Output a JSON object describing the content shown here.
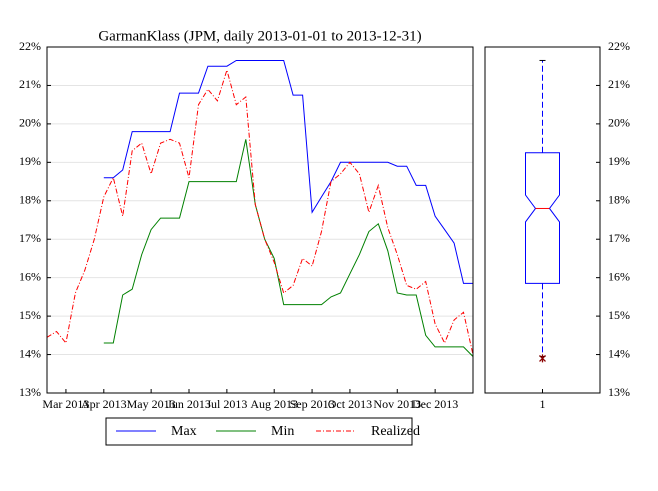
{
  "chart_data": [
    {
      "type": "line",
      "title": "GarmanKlass (JPM, daily 2013-01-01 to 2013-12-31)",
      "categories": [
        null,
        null,
        "Mar 2013",
        null,
        null,
        null,
        "Apr 2013",
        null,
        null,
        null,
        null,
        "May 2013",
        null,
        null,
        null,
        "Jun 2013",
        null,
        null,
        null,
        "Jul 2013",
        null,
        null,
        null,
        null,
        "Aug 2013",
        null,
        null,
        null,
        "Sep 2013",
        null,
        null,
        null,
        "Oct 2013",
        null,
        null,
        null,
        null,
        "Nov 2013",
        null,
        null,
        null,
        "Dec 2013",
        null,
        null,
        null,
        null
      ],
      "series": [
        {
          "name": "Max",
          "color": "#0000ff",
          "linestyle": "solid",
          "values": [
            null,
            null,
            null,
            null,
            null,
            null,
            18.6,
            18.6,
            18.8,
            19.8,
            19.8,
            19.8,
            19.8,
            19.8,
            20.8,
            20.8,
            20.8,
            21.5,
            21.5,
            21.5,
            21.65,
            21.65,
            21.65,
            21.65,
            21.65,
            21.65,
            20.75,
            20.75,
            17.7,
            18.1,
            18.5,
            19.0,
            19.0,
            19.0,
            19.0,
            19.0,
            19.0,
            18.9,
            18.9,
            18.4,
            18.4,
            17.6,
            17.25,
            16.9,
            15.85,
            15.85
          ]
        },
        {
          "name": "Min",
          "color": "#008000",
          "linestyle": "solid",
          "values": [
            null,
            null,
            null,
            null,
            null,
            null,
            14.3,
            14.3,
            15.55,
            15.7,
            16.6,
            17.25,
            17.55,
            17.55,
            17.55,
            18.5,
            18.5,
            18.5,
            18.5,
            18.5,
            18.5,
            19.6,
            17.9,
            17.0,
            16.5,
            15.3,
            15.3,
            15.3,
            15.3,
            15.3,
            15.5,
            15.6,
            16.1,
            16.6,
            17.2,
            17.4,
            16.7,
            15.6,
            15.55,
            15.55,
            14.5,
            14.2,
            14.2,
            14.2,
            14.2,
            13.95
          ]
        },
        {
          "name": "Realized",
          "color": "#ff0000",
          "linestyle": "dashdot",
          "values": [
            14.45,
            14.6,
            14.3,
            15.6,
            16.2,
            17.0,
            18.1,
            18.6,
            17.6,
            19.3,
            19.5,
            18.7,
            19.5,
            19.6,
            19.5,
            18.6,
            20.5,
            20.9,
            20.6,
            21.4,
            20.5,
            20.7,
            17.9,
            17.0,
            16.4,
            15.6,
            15.8,
            16.5,
            16.3,
            17.2,
            18.5,
            18.7,
            19.0,
            18.7,
            17.7,
            18.4,
            17.3,
            16.6,
            15.8,
            15.7,
            15.9,
            14.8,
            14.3,
            14.9,
            15.1,
            14.0
          ]
        }
      ],
      "ylim": [
        13,
        22
      ],
      "yticks": [
        {
          "value": 13,
          "label": "13%"
        },
        {
          "value": 14,
          "label": "14%"
        },
        {
          "value": 15,
          "label": "15%"
        },
        {
          "value": 16,
          "label": "16%"
        },
        {
          "value": 17,
          "label": "17%"
        },
        {
          "value": 18,
          "label": "18%"
        },
        {
          "value": 19,
          "label": "19%"
        },
        {
          "value": 20,
          "label": "20%"
        },
        {
          "value": 21,
          "label": "21%"
        },
        {
          "value": 22,
          "label": "22%"
        }
      ],
      "grid": true,
      "legend": "bottom"
    },
    {
      "type": "box",
      "color": "#0000ff",
      "categories": [
        "1"
      ],
      "boxes": [
        {
          "whislo": 13.95,
          "q1": 15.85,
          "notch_low": 17.45,
          "med": 17.8,
          "notch_high": 18.15,
          "q3": 19.25,
          "whishi": 21.65,
          "fliers": [
            13.9
          ]
        }
      ],
      "ylim": [
        13,
        22
      ],
      "yticks": [
        {
          "value": 13,
          "label": "13%"
        },
        {
          "value": 14,
          "label": "14%"
        },
        {
          "value": 15,
          "label": "15%"
        },
        {
          "value": 16,
          "label": "16%"
        },
        {
          "value": 17,
          "label": "17%"
        },
        {
          "value": 18,
          "label": "18%"
        },
        {
          "value": 19,
          "label": "19%"
        },
        {
          "value": 20,
          "label": "20%"
        },
        {
          "value": 21,
          "label": "21%"
        },
        {
          "value": 22,
          "label": "22%"
        }
      ],
      "grid": false
    }
  ]
}
